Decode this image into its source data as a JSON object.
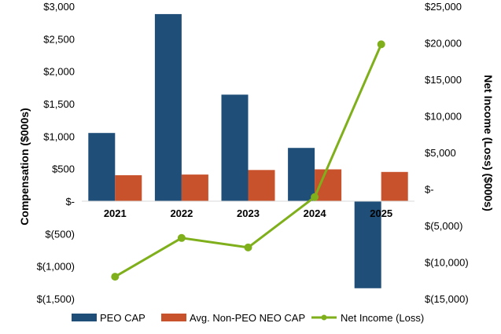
{
  "chart_data": {
    "type": "bar",
    "title": "",
    "categories": [
      "2021",
      "2022",
      "2023",
      "2024",
      "2025"
    ],
    "series": [
      {
        "name": "PEO CAP",
        "axis": "left",
        "kind": "bar",
        "color": "#1F4E79",
        "values": [
          1050,
          2880,
          1640,
          820,
          -1340
        ]
      },
      {
        "name": "Avg. Non-PEO NEO CAP",
        "axis": "left",
        "kind": "bar",
        "color": "#C8522B",
        "values": [
          400,
          410,
          480,
          490,
          450
        ]
      },
      {
        "name": "Net Income (Loss)",
        "axis": "right",
        "kind": "line",
        "color": "#7FAF1B",
        "values": [
          -12000,
          -6700,
          -8000,
          -1100,
          19800
        ]
      }
    ],
    "ylabel": "Compensation ($000s)",
    "y2label": "Net Income (Loss) ($000s)",
    "ylim": [
      -1500,
      3000
    ],
    "y2lim": [
      -15000,
      25000
    ],
    "yticks": [
      {
        "value": 3000,
        "label": "$3,000"
      },
      {
        "value": 2500,
        "label": "$2,500"
      },
      {
        "value": 2000,
        "label": "$2,000"
      },
      {
        "value": 1500,
        "label": "$1,500"
      },
      {
        "value": 1000,
        "label": "$1,000"
      },
      {
        "value": 500,
        "label": "$500"
      },
      {
        "value": 0,
        "label": "$-"
      },
      {
        "value": -500,
        "label": "$(500)"
      },
      {
        "value": -1000,
        "label": "$(1,000)"
      },
      {
        "value": -1500,
        "label": "$(1,500)"
      }
    ],
    "y2ticks": [
      {
        "value": 25000,
        "label": "$25,000"
      },
      {
        "value": 20000,
        "label": "$20,000"
      },
      {
        "value": 15000,
        "label": "$15,000"
      },
      {
        "value": 10000,
        "label": "$10,000"
      },
      {
        "value": 5000,
        "label": "$5,000"
      },
      {
        "value": 0,
        "label": "$-"
      },
      {
        "value": -5000,
        "label": "$(5,000)"
      },
      {
        "value": -10000,
        "label": "$(10,000)"
      },
      {
        "value": -15000,
        "label": "$(15,000)"
      }
    ],
    "grid": false,
    "legend_position": "bottom"
  }
}
